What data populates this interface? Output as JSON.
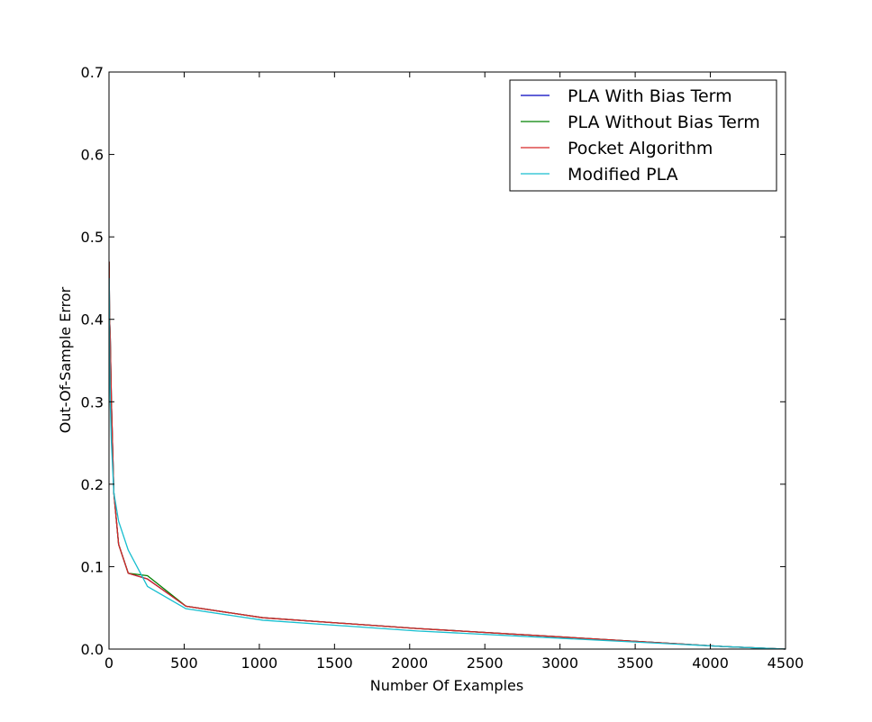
{
  "chart_data": {
    "type": "line",
    "title": "",
    "xlabel": "Number Of Examples",
    "ylabel": "Out-Of-Sample Error",
    "xlim": [
      0,
      4500
    ],
    "ylim": [
      0,
      0.7
    ],
    "xticks": [
      0,
      500,
      1000,
      1500,
      2000,
      2500,
      3000,
      3500,
      4000,
      4500
    ],
    "xtick_labels": [
      "0",
      "500",
      "1000",
      "1500",
      "2000",
      "2500",
      "3000",
      "3500",
      "4000",
      "4500"
    ],
    "yticks": [
      0,
      0.1,
      0.2,
      0.3,
      0.4,
      0.5,
      0.6,
      0.7
    ],
    "ytick_labels": [
      "0.0",
      "0.1",
      "0.2",
      "0.3",
      "0.4",
      "0.5",
      "0.6",
      "0.7"
    ],
    "grid": false,
    "legend_position": "top-right",
    "series": [
      {
        "name": "PLA With Bias Term",
        "color": "#0000bf",
        "x": [
          1,
          2,
          4,
          8,
          16,
          32,
          64,
          128,
          256,
          512,
          1024,
          2048,
          4096,
          4500
        ],
        "y": [
          0.47,
          0.44,
          0.4,
          0.38,
          0.3,
          0.19,
          0.127,
          0.092,
          0.085,
          0.052,
          0.038,
          0.025,
          0.003,
          0.0
        ]
      },
      {
        "name": "PLA Without Bias Term",
        "color": "#008000",
        "x": [
          1,
          2,
          4,
          8,
          16,
          32,
          64,
          128,
          256,
          512,
          1024,
          2048,
          4096,
          4500
        ],
        "y": [
          0.47,
          0.44,
          0.4,
          0.38,
          0.3,
          0.19,
          0.127,
          0.092,
          0.089,
          0.052,
          0.038,
          0.025,
          0.003,
          0.0
        ]
      },
      {
        "name": "Pocket Algorithm",
        "color": "#d62728",
        "x": [
          1,
          2,
          4,
          8,
          16,
          32,
          64,
          128,
          256,
          512,
          1024,
          2048,
          4096,
          4500
        ],
        "y": [
          0.47,
          0.44,
          0.4,
          0.38,
          0.3,
          0.19,
          0.127,
          0.092,
          0.085,
          0.052,
          0.038,
          0.025,
          0.003,
          0.0
        ]
      },
      {
        "name": "Modified PLA",
        "color": "#17becf",
        "x": [
          1,
          2,
          4,
          8,
          16,
          32,
          64,
          128,
          256,
          512,
          1024,
          2048,
          4096,
          4500
        ],
        "y": [
          0.45,
          0.42,
          0.36,
          0.3,
          0.25,
          0.19,
          0.155,
          0.12,
          0.076,
          0.049,
          0.035,
          0.022,
          0.003,
          0.0
        ]
      }
    ]
  }
}
